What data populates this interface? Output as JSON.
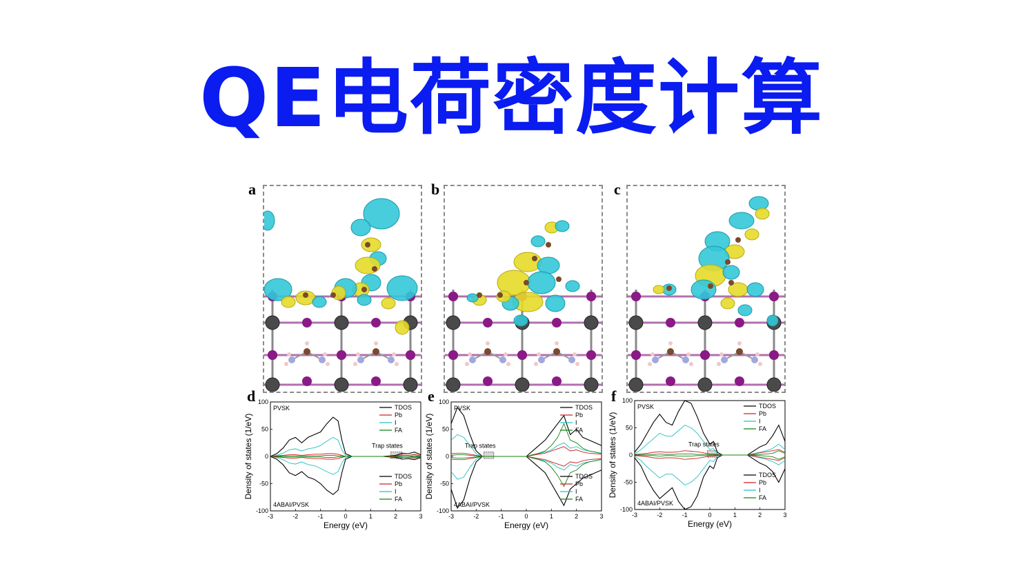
{
  "title": "QE电荷密度计算",
  "colors": {
    "title": "#0a1cf0",
    "cyan": "#33c8d8",
    "yellow": "#e6dc2a",
    "lead": "#4a4a4a",
    "iodine": "#8a1a86",
    "carbon": "#7a4a2a",
    "nitrogen": "#a0a8e0",
    "hydrogen": "#f0c8c8",
    "TDOS": "#000000",
    "Pb": "#d02020",
    "I": "#20c0c0",
    "FA": "#108010"
  },
  "panels": {
    "a": "a",
    "b": "b",
    "c": "c",
    "d": "d",
    "e": "e",
    "f": "f"
  },
  "chart_data": [
    {
      "type": "line",
      "panel": "d",
      "top_label": "PVSK",
      "bottom_label": "4ABAI/PVSK",
      "annotation": "Trap states",
      "xlabel": "Energy (eV)",
      "ylabel": "Density of states (1/eV)",
      "xlim": [
        -3,
        3
      ],
      "ylim": [
        -100,
        100
      ],
      "xticks": [
        "-3",
        "-2",
        "-1",
        "0",
        "1",
        "2",
        "3"
      ],
      "yticks": [
        "100",
        "50",
        "0",
        "-50",
        "-100"
      ],
      "legend_top": [
        "TDOS",
        "Pb",
        "I",
        "FA"
      ],
      "legend_bottom": [
        "TDOS",
        "Pb",
        "I",
        "FA"
      ],
      "trap_box": [
        1.8,
        2.25
      ],
      "x": [
        -3,
        -2.75,
        -2.5,
        -2.25,
        -2,
        -1.75,
        -1.5,
        -1.25,
        -1,
        -0.75,
        -0.5,
        -0.3,
        -0.15,
        0,
        0.25,
        0.5,
        1,
        1.5,
        2,
        2.25,
        2.5,
        2.75,
        3
      ],
      "series": [
        {
          "name": "TDOS",
          "values": [
            0,
            5,
            15,
            30,
            35,
            25,
            35,
            40,
            45,
            60,
            72,
            65,
            30,
            5,
            0,
            0,
            0,
            0,
            2,
            6,
            5,
            8,
            3
          ]
        },
        {
          "name": "I",
          "values": [
            0,
            2,
            6,
            12,
            14,
            10,
            14,
            16,
            20,
            28,
            35,
            30,
            12,
            2,
            0,
            0,
            0,
            0,
            0,
            2,
            2,
            3,
            1
          ]
        },
        {
          "name": "Pb",
          "values": [
            0,
            1,
            2,
            3,
            3,
            2,
            3,
            4,
            4,
            5,
            5,
            4,
            2,
            0,
            0,
            0,
            0,
            0,
            1,
            3,
            2,
            4,
            1
          ]
        },
        {
          "name": "FA",
          "values": [
            0,
            0,
            1,
            1,
            1,
            1,
            1,
            1,
            1,
            2,
            2,
            1,
            1,
            0,
            0,
            0,
            0,
            0,
            0,
            0,
            0,
            1,
            0
          ]
        },
        {
          "name": "TDOS",
          "values": [
            0,
            -5,
            -15,
            -30,
            -35,
            -28,
            -38,
            -42,
            -50,
            -62,
            -70,
            -62,
            -30,
            -5,
            0,
            0,
            0,
            0,
            -2,
            -5,
            -4,
            -6,
            -2
          ]
        },
        {
          "name": "I",
          "values": [
            0,
            -2,
            -6,
            -12,
            -14,
            -10,
            -15,
            -17,
            -22,
            -28,
            -33,
            -28,
            -12,
            -2,
            0,
            0,
            0,
            0,
            0,
            -2,
            -2,
            -2,
            -1
          ]
        },
        {
          "name": "Pb",
          "values": [
            0,
            -1,
            -2,
            -3,
            -3,
            -2,
            -3,
            -4,
            -4,
            -5,
            -5,
            -4,
            -2,
            0,
            0,
            0,
            0,
            0,
            -1,
            -2,
            -2,
            -3,
            -1
          ]
        },
        {
          "name": "FA",
          "values": [
            0,
            0,
            -1,
            -1,
            -1,
            -1,
            -1,
            -1,
            -1,
            -2,
            -2,
            -1,
            -1,
            0,
            0,
            0,
            0,
            0,
            0,
            0,
            0,
            -1,
            0
          ]
        }
      ]
    },
    {
      "type": "line",
      "panel": "e",
      "top_label": "PVSK",
      "bottom_label": "4ABAI/PVSK",
      "annotation": "Trap states",
      "xlabel": "Energy (eV)",
      "ylabel": "Density of states (1/eV)",
      "xlim": [
        -3,
        3
      ],
      "ylim": [
        -100,
        100
      ],
      "xticks": [
        "-3",
        "-2",
        "-1",
        "0",
        "1",
        "2",
        "3"
      ],
      "yticks": [
        "100",
        "50",
        "0",
        "-50",
        "-100"
      ],
      "legend_top": [
        "TDOS",
        "Pb",
        "I",
        "FA"
      ],
      "legend_bottom": [
        "TDOS",
        "Pb",
        "I",
        "FA"
      ],
      "trap_box": [
        -1.7,
        -1.3
      ],
      "x": [
        -3,
        -2.75,
        -2.5,
        -2.25,
        -2,
        -1.75,
        -1.5,
        -1.25,
        -1,
        -0.5,
        0,
        0.25,
        0.5,
        0.75,
        1,
        1.25,
        1.5,
        1.75,
        2,
        2.25,
        2.5,
        2.75,
        3
      ],
      "series": [
        {
          "name": "TDOS",
          "values": [
            60,
            90,
            75,
            40,
            10,
            0,
            0,
            0,
            0,
            0,
            0,
            10,
            20,
            30,
            45,
            60,
            75,
            40,
            50,
            35,
            30,
            25,
            20
          ]
        },
        {
          "name": "I",
          "values": [
            30,
            40,
            35,
            20,
            5,
            0,
            0,
            0,
            0,
            0,
            0,
            3,
            5,
            8,
            12,
            20,
            25,
            15,
            18,
            12,
            10,
            8,
            6
          ]
        },
        {
          "name": "Pb",
          "values": [
            5,
            6,
            6,
            4,
            2,
            0,
            0,
            0,
            0,
            0,
            0,
            2,
            4,
            6,
            10,
            14,
            18,
            10,
            12,
            8,
            6,
            5,
            4
          ]
        },
        {
          "name": "FA",
          "values": [
            2,
            3,
            3,
            2,
            1,
            0,
            0,
            0,
            0,
            0,
            0,
            3,
            6,
            10,
            20,
            35,
            60,
            30,
            25,
            15,
            10,
            8,
            5
          ]
        },
        {
          "name": "TDOS",
          "values": [
            -60,
            -95,
            -80,
            -40,
            -10,
            0,
            0,
            0,
            0,
            0,
            0,
            -10,
            -20,
            -30,
            -50,
            -70,
            -90,
            -60,
            -50,
            -40,
            -35,
            -30,
            -25
          ]
        },
        {
          "name": "I",
          "values": [
            -28,
            -42,
            -38,
            -20,
            -5,
            0,
            0,
            0,
            0,
            0,
            0,
            -3,
            -5,
            -8,
            -12,
            -20,
            -25,
            -15,
            -18,
            -12,
            -10,
            -8,
            -6
          ]
        },
        {
          "name": "Pb",
          "values": [
            -5,
            -6,
            -6,
            -4,
            -2,
            0,
            0,
            0,
            0,
            0,
            0,
            -2,
            -4,
            -6,
            -10,
            -14,
            -18,
            -10,
            -12,
            -8,
            -6,
            -5,
            -4
          ]
        },
        {
          "name": "FA",
          "values": [
            -2,
            -3,
            -3,
            -2,
            -1,
            0,
            0,
            0,
            0,
            0,
            0,
            -3,
            -6,
            -10,
            -20,
            -35,
            -55,
            -30,
            -25,
            -15,
            -10,
            -8,
            -5
          ]
        }
      ]
    },
    {
      "type": "line",
      "panel": "f",
      "top_label": "PVSK",
      "bottom_label": "4ABAI/PVSK",
      "annotation": "Trap states",
      "xlabel": "Energy (eV)",
      "ylabel": "Density of states (1/eV)",
      "xlim": [
        -3,
        3
      ],
      "ylim": [
        -100,
        100
      ],
      "xticks": [
        "-3",
        "-2",
        "-1",
        "0",
        "1",
        "2",
        "3"
      ],
      "yticks": [
        "100",
        "50",
        "0",
        "-50",
        "-100"
      ],
      "legend_top": [
        "TDOS",
        "Pb",
        "I",
        "FA"
      ],
      "legend_bottom": [
        "TDOS",
        "Pb",
        "I",
        "FA"
      ],
      "trap_box": [
        -0.1,
        0.3
      ],
      "x": [
        -3,
        -2.75,
        -2.5,
        -2.25,
        -2,
        -1.75,
        -1.5,
        -1.25,
        -1,
        -0.75,
        -0.5,
        -0.25,
        0,
        0.15,
        0.3,
        0.5,
        1,
        1.5,
        2,
        2.25,
        2.5,
        2.75,
        3
      ],
      "series": [
        {
          "name": "TDOS",
          "values": [
            5,
            20,
            40,
            60,
            75,
            60,
            55,
            80,
            100,
            95,
            70,
            40,
            20,
            25,
            5,
            0,
            0,
            0,
            15,
            20,
            35,
            55,
            25
          ]
        },
        {
          "name": "I",
          "values": [
            2,
            10,
            20,
            30,
            40,
            35,
            35,
            45,
            55,
            50,
            40,
            25,
            10,
            12,
            2,
            0,
            0,
            0,
            5,
            8,
            12,
            20,
            10
          ]
        },
        {
          "name": "Pb",
          "values": [
            1,
            2,
            3,
            5,
            6,
            5,
            5,
            6,
            8,
            7,
            6,
            4,
            2,
            2,
            1,
            0,
            0,
            0,
            4,
            6,
            8,
            10,
            5
          ]
        },
        {
          "name": "FA",
          "values": [
            0,
            1,
            1,
            1,
            2,
            1,
            1,
            2,
            2,
            2,
            1,
            1,
            1,
            1,
            0,
            0,
            0,
            0,
            1,
            2,
            3,
            8,
            3
          ]
        },
        {
          "name": "TDOS",
          "values": [
            -5,
            -20,
            -45,
            -65,
            -80,
            -70,
            -60,
            -85,
            -100,
            -95,
            -75,
            -40,
            -20,
            -25,
            -5,
            0,
            0,
            0,
            -15,
            -20,
            -30,
            -50,
            -25
          ]
        },
        {
          "name": "I",
          "values": [
            -2,
            -10,
            -22,
            -32,
            -42,
            -35,
            -35,
            -45,
            -55,
            -50,
            -40,
            -25,
            -10,
            -12,
            -2,
            0,
            0,
            0,
            -5,
            -8,
            -12,
            -18,
            -10
          ]
        },
        {
          "name": "Pb",
          "values": [
            -1,
            -2,
            -3,
            -5,
            -6,
            -5,
            -5,
            -6,
            -8,
            -7,
            -6,
            -4,
            -2,
            -2,
            -1,
            0,
            0,
            0,
            -4,
            -6,
            -8,
            -10,
            -5
          ]
        },
        {
          "name": "FA",
          "values": [
            0,
            -1,
            -1,
            -1,
            -2,
            -1,
            -1,
            -2,
            -2,
            -2,
            -1,
            -1,
            -1,
            -1,
            0,
            0,
            0,
            0,
            -1,
            -2,
            -3,
            -8,
            -3
          ]
        }
      ]
    }
  ]
}
